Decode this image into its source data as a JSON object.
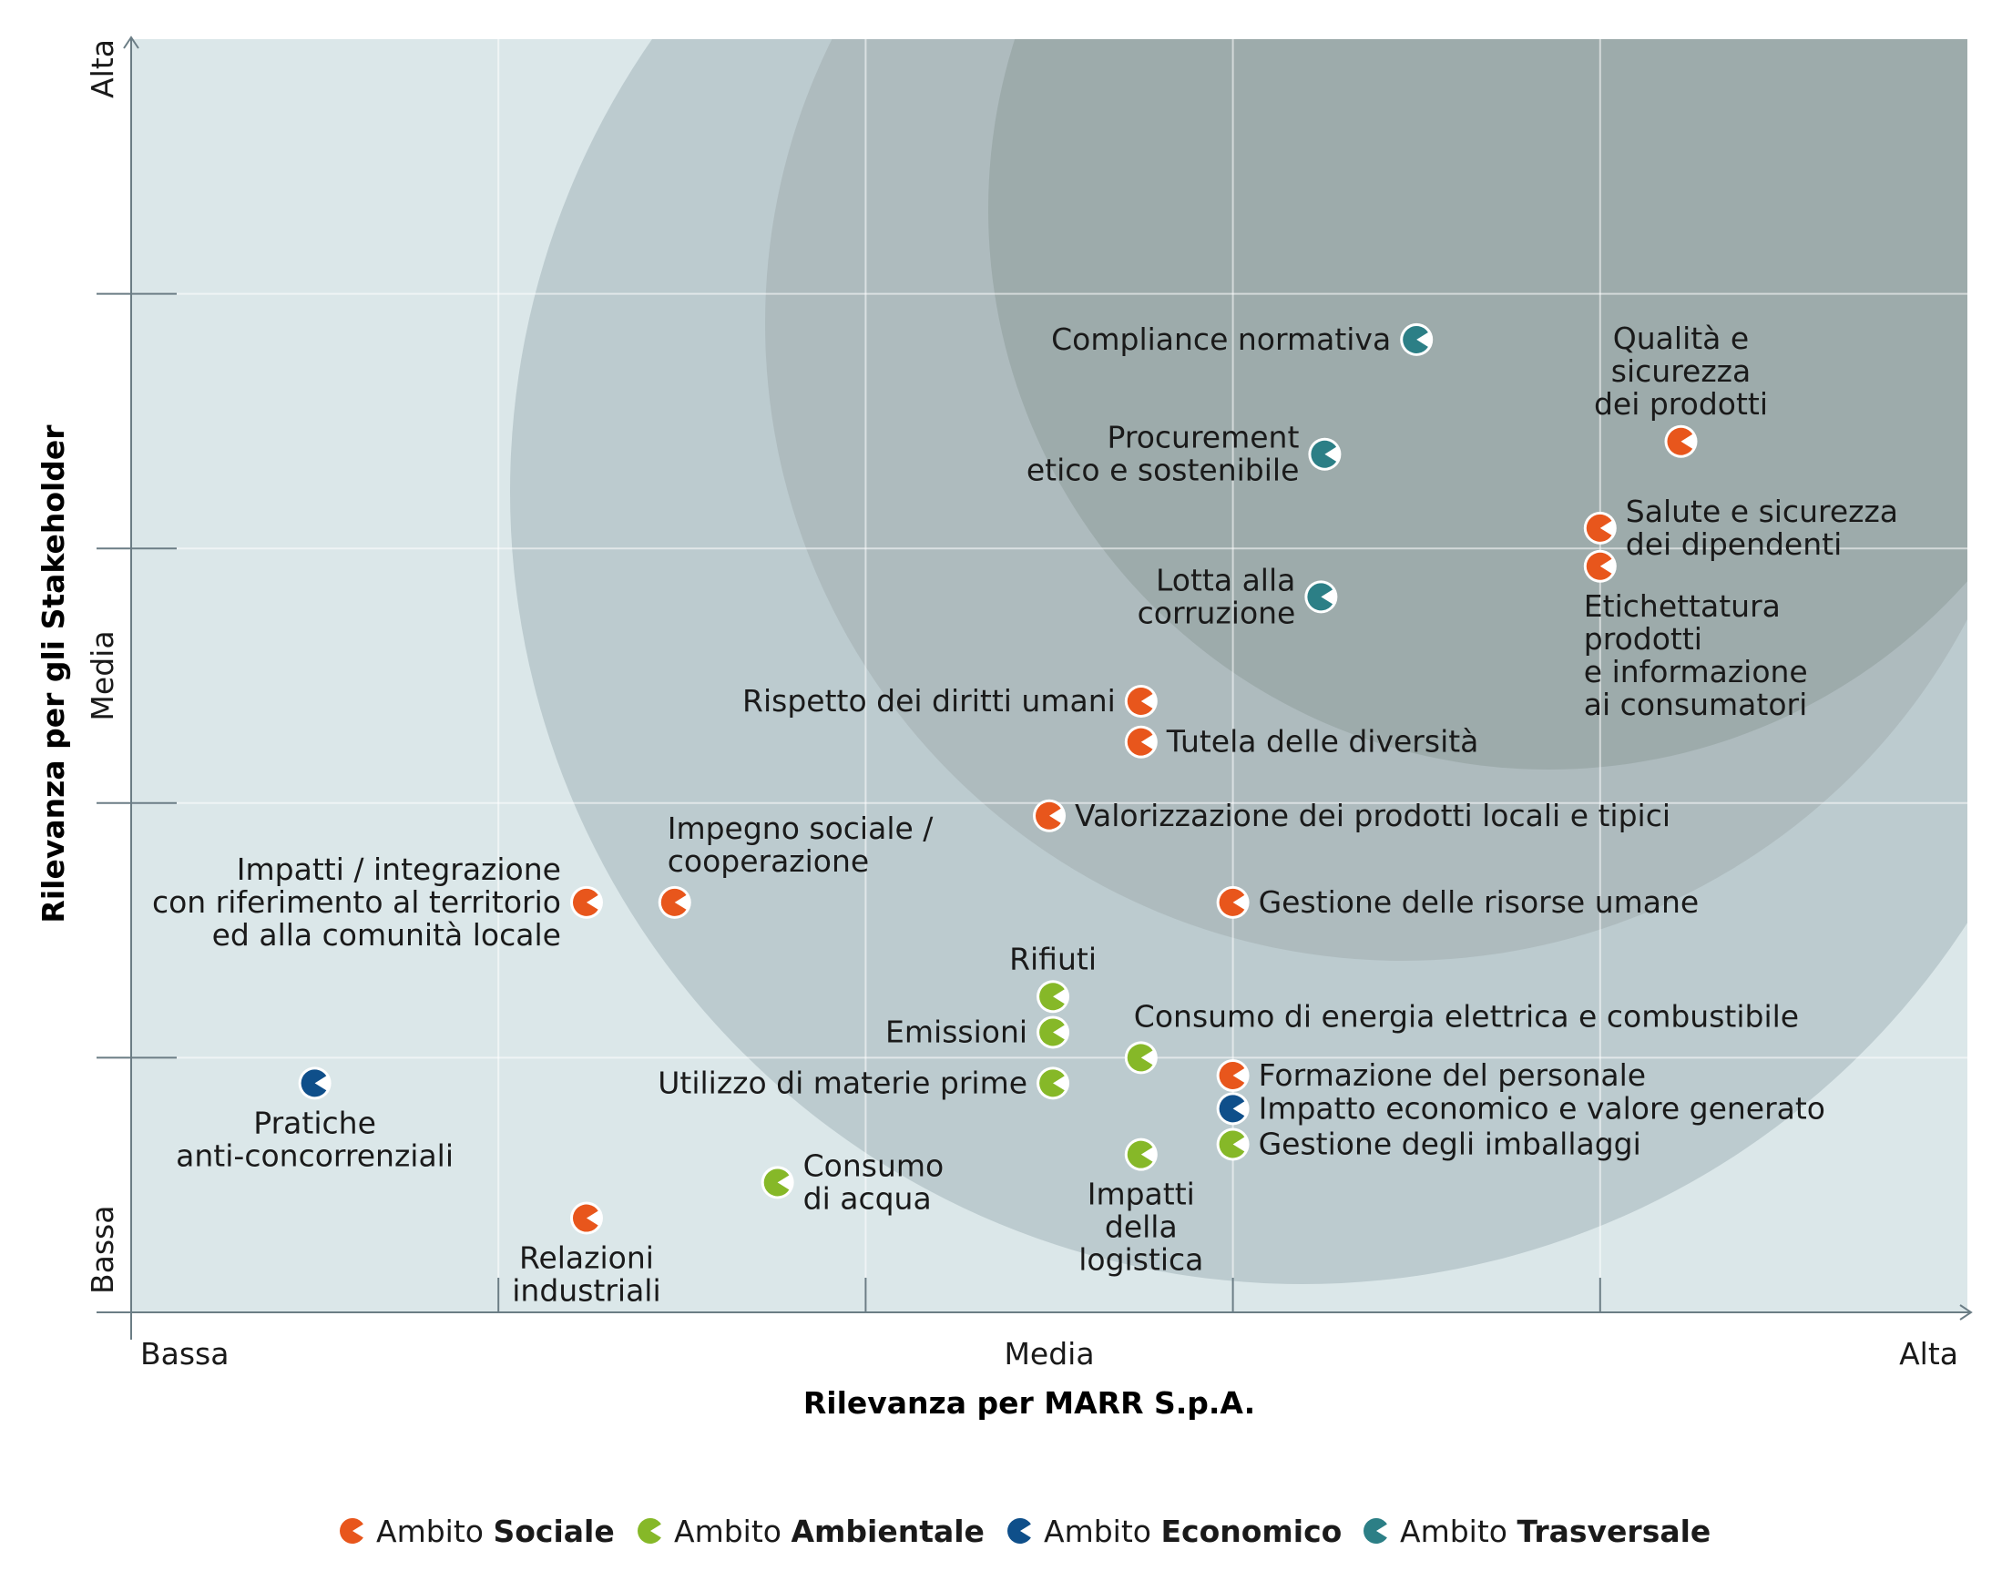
{
  "chart_data": {
    "type": "scatter",
    "title": "",
    "xlabel": "Rilevanza per MARR S.p.A.",
    "ylabel": "Rilevanza per gli Stakeholder",
    "xlim": [
      0,
      5
    ],
    "ylim": [
      0,
      5
    ],
    "x_ticks": [
      {
        "value": 0,
        "label": "Bassa"
      },
      {
        "value": 2.5,
        "label": "Media"
      },
      {
        "value": 5,
        "label": "Alta"
      }
    ],
    "y_ticks": [
      {
        "value": 0,
        "label": "Bassa"
      },
      {
        "value": 2.5,
        "label": "Media"
      },
      {
        "value": 5,
        "label": "Alta"
      }
    ],
    "grid": true,
    "legend_position": "bottom",
    "colors": {
      "sociale": "#e8561c",
      "ambientale": "#86b828",
      "economico": "#0f4f8a",
      "trasversale": "#2c7f86",
      "background": "#dbe7e9",
      "circle_outer": "#bccbcf",
      "circle_middle": "#aebbbe",
      "circle_inner": "#9dabab"
    },
    "legend": [
      {
        "key": "sociale",
        "prefix": "Ambito ",
        "name": "Sociale"
      },
      {
        "key": "ambientale",
        "prefix": "Ambito ",
        "name": "Ambientale"
      },
      {
        "key": "economico",
        "prefix": "Ambito ",
        "name": "Economico"
      },
      {
        "key": "trasversale",
        "prefix": "Ambito ",
        "name": "Trasversale"
      }
    ],
    "points": [
      {
        "label": [
          "Compliance normativa"
        ],
        "cat": "trasversale",
        "x": 3.5,
        "y": 3.82,
        "labelPos": "left"
      },
      {
        "label": [
          "Qualità e",
          "sicurezza",
          "dei prodotti"
        ],
        "cat": "sociale",
        "x": 4.22,
        "y": 3.42,
        "labelPos": "above"
      },
      {
        "label": [
          "Procurement",
          "etico e sostenibile"
        ],
        "cat": "trasversale",
        "x": 3.25,
        "y": 3.37,
        "labelPos": "left"
      },
      {
        "label": [
          "Salute e sicurezza",
          "dei dipendenti"
        ],
        "cat": "sociale",
        "x": 4.0,
        "y": 3.08,
        "labelPos": "right"
      },
      {
        "label": [
          "Etichettatura",
          "prodotti",
          "e informazione",
          "ai consumatori"
        ],
        "cat": "sociale",
        "x": 4.0,
        "y": 2.93,
        "labelPos": "belowright"
      },
      {
        "label": [
          "Lotta alla",
          "corruzione"
        ],
        "cat": "trasversale",
        "x": 3.24,
        "y": 2.81,
        "labelPos": "left"
      },
      {
        "label": [
          "Rispetto dei diritti umani"
        ],
        "cat": "sociale",
        "x": 2.75,
        "y": 2.4,
        "labelPos": "left"
      },
      {
        "label": [
          "Tutela delle diversità"
        ],
        "cat": "sociale",
        "x": 2.75,
        "y": 2.24,
        "labelPos": "right"
      },
      {
        "label": [
          "Valorizzazione dei prodotti locali e tipici"
        ],
        "cat": "sociale",
        "x": 2.5,
        "y": 1.95,
        "labelPos": "right"
      },
      {
        "label": [
          "Impatti / integrazione",
          "con riferimento al territorio",
          "ed alla comunità locale"
        ],
        "cat": "sociale",
        "x": 1.24,
        "y": 1.61,
        "labelPos": "left"
      },
      {
        "label": [
          "Impegno sociale /",
          "cooperazione"
        ],
        "cat": "sociale",
        "x": 1.48,
        "y": 1.61,
        "labelPos": "aboveright"
      },
      {
        "label": [
          "Gestione delle risorse umane"
        ],
        "cat": "sociale",
        "x": 3.0,
        "y": 1.61,
        "labelPos": "right"
      },
      {
        "label": [
          "Rifiuti"
        ],
        "cat": "ambientale",
        "x": 2.51,
        "y": 1.24,
        "labelPos": "above"
      },
      {
        "label": [
          "Emissioni"
        ],
        "cat": "ambientale",
        "x": 2.51,
        "y": 1.1,
        "labelPos": "left"
      },
      {
        "label": [
          "Consumo di energia elettrica e combustibile"
        ],
        "cat": "ambientale",
        "x": 2.75,
        "y": 1.0,
        "labelPos": "aboveright"
      },
      {
        "label": [
          "Utilizzo di materie prime"
        ],
        "cat": "ambientale",
        "x": 2.51,
        "y": 0.9,
        "labelPos": "left"
      },
      {
        "label": [
          "Formazione del personale"
        ],
        "cat": "sociale",
        "x": 3.0,
        "y": 0.93,
        "labelPos": "right"
      },
      {
        "label": [
          "Pratiche",
          "anti-concorrenziali"
        ],
        "cat": "economico",
        "x": 0.5,
        "y": 0.9,
        "labelPos": "below"
      },
      {
        "label": [
          "Impatto economico e valore generato"
        ],
        "cat": "economico",
        "x": 3.0,
        "y": 0.8,
        "labelPos": "right"
      },
      {
        "label": [
          "Gestione degli imballaggi"
        ],
        "cat": "ambientale",
        "x": 3.0,
        "y": 0.66,
        "labelPos": "right"
      },
      {
        "label": [
          "Impatti",
          "della",
          "logistica"
        ],
        "cat": "ambientale",
        "x": 2.75,
        "y": 0.62,
        "labelPos": "below"
      },
      {
        "label": [
          "Consumo",
          "di acqua"
        ],
        "cat": "ambientale",
        "x": 1.76,
        "y": 0.51,
        "labelPos": "right"
      },
      {
        "label": [
          "Relazioni",
          "industriali"
        ],
        "cat": "sociale",
        "x": 1.24,
        "y": 0.37,
        "labelPos": "below"
      }
    ]
  }
}
